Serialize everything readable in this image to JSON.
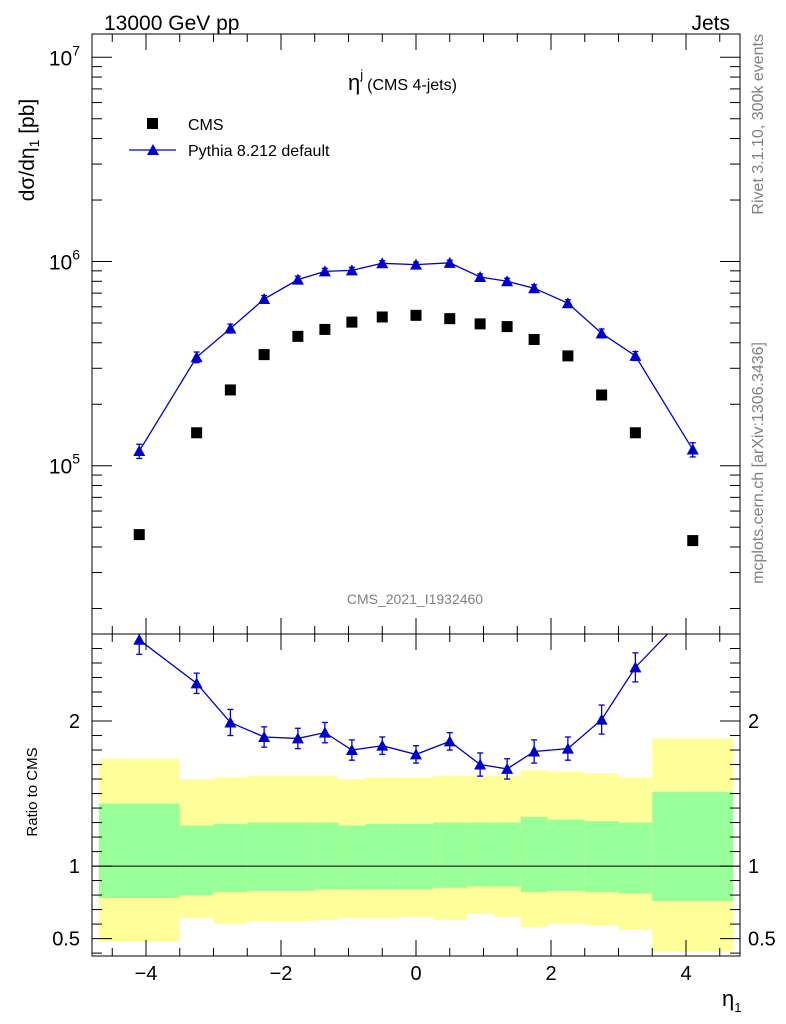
{
  "header": {
    "left": "13000 GeV pp",
    "right": "Jets"
  },
  "side_text": {
    "rivet": "Rivet 3.1.10,  300k events",
    "mcplots": "mcplots.cern.ch [arXiv:1306.3436]"
  },
  "chart_data": [
    {
      "type": "scatter",
      "title": "η",
      "title_sup": "j",
      "title_suffix": "(CMS 4-jets)",
      "analysis_label": "CMS_2021_I1932460",
      "ylabel": "dσ/dη",
      "ylabel_sub": "1",
      "ylabel_unit": "[pb]",
      "y_scale": "log",
      "xlim": [
        -4.8,
        4.8
      ],
      "ylim": [
        15000,
        13000000
      ],
      "y_tick_labels": [
        {
          "base": "10",
          "exp": "5",
          "value": 100000
        },
        {
          "base": "10",
          "exp": "6",
          "value": 1000000
        },
        {
          "base": "10",
          "exp": "7",
          "value": 10000000
        }
      ],
      "legend_position": "top-left",
      "series": [
        {
          "name": "CMS",
          "marker": "square",
          "color": "#000000",
          "x": [
            -4.1,
            -3.25,
            -2.75,
            -2.25,
            -1.75,
            -1.35,
            -0.95,
            -0.5,
            0.0,
            0.5,
            0.95,
            1.35,
            1.75,
            2.25,
            2.75,
            3.25,
            4.1
          ],
          "y": [
            46000,
            145000,
            235000,
            350000,
            430000,
            465000,
            505000,
            535000,
            545000,
            525000,
            495000,
            480000,
            415000,
            345000,
            222000,
            145000,
            43000
          ]
        },
        {
          "name": "Pythia 8.212 default",
          "marker": "triangle",
          "color": "#0000cc",
          "x": [
            -4.1,
            -3.25,
            -2.75,
            -2.25,
            -1.75,
            -1.35,
            -0.95,
            -0.5,
            0.0,
            0.5,
            0.95,
            1.35,
            1.75,
            2.25,
            2.75,
            3.25,
            4.1
          ],
          "y": [
            118000,
            340000,
            470000,
            655000,
            815000,
            895000,
            905000,
            980000,
            965000,
            985000,
            840000,
            800000,
            740000,
            625000,
            445000,
            345000,
            120000
          ],
          "yerr": [
            0.08,
            0.06,
            0.05,
            0.04,
            0.04,
            0.035,
            0.035,
            0.03,
            0.03,
            0.03,
            0.035,
            0.035,
            0.04,
            0.04,
            0.05,
            0.05,
            0.08
          ]
        }
      ]
    },
    {
      "type": "area",
      "ylabel": "Ratio to CMS",
      "xlabel": "η",
      "xlabel_sub": "1",
      "xlim": [
        -4.8,
        4.8
      ],
      "ylim": [
        0.38,
        2.6
      ],
      "x_ticks": [
        {
          "value": -4,
          "label": "−4"
        },
        {
          "value": -2,
          "label": "−2"
        },
        {
          "value": 0,
          "label": "0"
        },
        {
          "value": 2,
          "label": "2"
        },
        {
          "value": 4,
          "label": "4"
        }
      ],
      "y_ticks": [
        {
          "value": 0.5,
          "label": "0.5"
        },
        {
          "value": 1,
          "label": "1"
        },
        {
          "value": 2,
          "label": "2"
        }
      ],
      "band_edges": [
        -4.7,
        -3.5,
        -3.0,
        -2.5,
        -2.0,
        -1.5,
        -1.15,
        -0.75,
        -0.25,
        0.25,
        0.75,
        1.15,
        1.55,
        1.95,
        2.5,
        3.0,
        3.5,
        4.7
      ],
      "inner_band": {
        "color": "#99ff99",
        "low": [
          0.78,
          0.8,
          0.82,
          0.83,
          0.83,
          0.84,
          0.84,
          0.84,
          0.84,
          0.85,
          0.86,
          0.86,
          0.82,
          0.83,
          0.82,
          0.81,
          0.76
        ],
        "high": [
          1.43,
          1.28,
          1.29,
          1.3,
          1.3,
          1.3,
          1.28,
          1.29,
          1.29,
          1.3,
          1.3,
          1.3,
          1.34,
          1.32,
          1.31,
          1.3,
          1.51
        ]
      },
      "outer_band": {
        "color": "#ffff99",
        "low": [
          0.48,
          0.64,
          0.6,
          0.62,
          0.62,
          0.63,
          0.64,
          0.64,
          0.65,
          0.63,
          0.67,
          0.65,
          0.58,
          0.6,
          0.59,
          0.56,
          0.41
        ],
        "high": [
          1.74,
          1.6,
          1.61,
          1.62,
          1.62,
          1.62,
          1.6,
          1.61,
          1.61,
          1.62,
          1.62,
          1.62,
          1.66,
          1.65,
          1.64,
          1.61,
          1.88
        ]
      },
      "series": [
        {
          "name": "Pythia 8.212 default",
          "color": "#0000cc",
          "x": [
            -4.1,
            -3.25,
            -2.75,
            -2.25,
            -1.75,
            -1.35,
            -0.95,
            -0.5,
            0.0,
            0.5,
            0.95,
            1.35,
            1.75,
            2.25,
            2.75,
            3.25,
            4.1
          ],
          "y": [
            2.56,
            2.26,
            1.99,
            1.89,
            1.88,
            1.92,
            1.8,
            1.83,
            1.77,
            1.86,
            1.7,
            1.67,
            1.79,
            1.81,
            2.01,
            2.37,
            2.78
          ],
          "yerr": [
            0.1,
            0.07,
            0.09,
            0.07,
            0.07,
            0.07,
            0.07,
            0.06,
            0.06,
            0.06,
            0.08,
            0.07,
            0.08,
            0.08,
            0.1,
            0.1,
            0.1
          ]
        }
      ]
    }
  ]
}
